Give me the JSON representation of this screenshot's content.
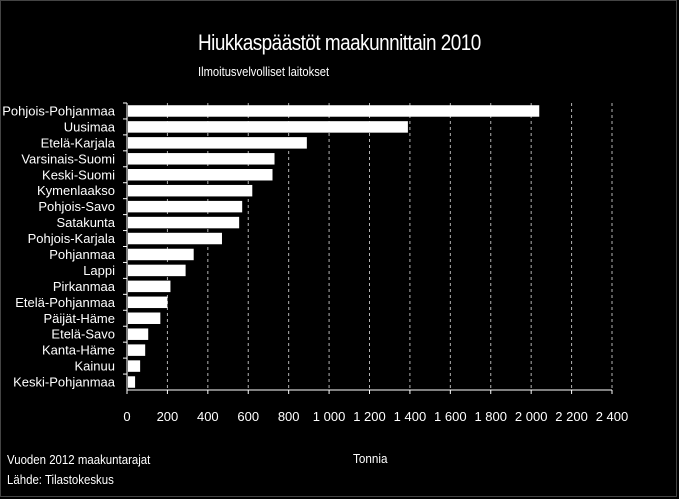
{
  "chart_data": {
    "type": "bar",
    "orientation": "horizontal",
    "title": "Hiukkaspäästöt maakunnittain 2010",
    "subtitle": "Ilmoitusvelvolliset laitokset",
    "xlabel": "Tonnia",
    "xlim": [
      0,
      2400
    ],
    "xticks": [
      "0",
      "200",
      "400",
      "600",
      "800",
      "1 000",
      "1 200",
      "1 400",
      "1 600",
      "1 800",
      "2 000",
      "2 200",
      "2 400"
    ],
    "grid": true,
    "categories": [
      "Pohjois-Pohjanmaa",
      "Uusimaa",
      "Etelä-Karjala",
      "Varsinais-Suomi",
      "Keski-Suomi",
      "Kymenlaakso",
      "Pohjois-Savo",
      "Satakunta",
      "Pohjois-Karjala",
      "Pohjanmaa",
      "Lappi",
      "Pirkanmaa",
      "Etelä-Pohjanmaa",
      "Päijät-Häme",
      "Etelä-Savo",
      "Kanta-Häme",
      "Kainuu",
      "Keski-Pohjanmaa"
    ],
    "values": [
      2040,
      1390,
      890,
      730,
      720,
      620,
      570,
      555,
      470,
      330,
      290,
      215,
      200,
      165,
      105,
      90,
      65,
      40
    ],
    "colors": {
      "background": "#000000",
      "bar": "#ffffff",
      "text": "#ffffff",
      "grid": "#ffffff"
    }
  },
  "notes": {
    "line1": "Vuoden 2012 maakuntarajat",
    "line2": "Lähde: Tilastokeskus"
  }
}
